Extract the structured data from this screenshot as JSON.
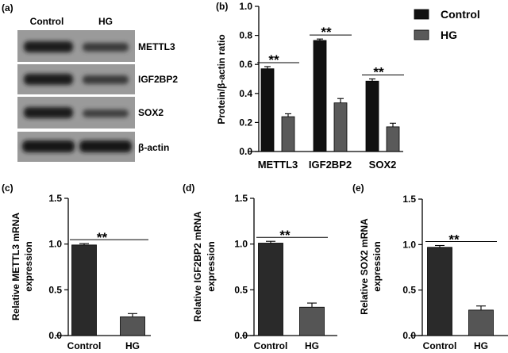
{
  "western_blot": {
    "panel_label": "(a)",
    "lanes": [
      "Control",
      "HG"
    ],
    "bands": [
      "METTL3",
      "IGF2BP2",
      "SOX2",
      "β-actin"
    ]
  },
  "significance": "**",
  "chart_data": [
    {
      "panel": "(b)",
      "type": "bar",
      "categories": [
        "METTL3",
        "IGF2BP2",
        "SOX2"
      ],
      "series": [
        {
          "name": "Control",
          "values": [
            0.57,
            0.765,
            0.485
          ],
          "errors": [
            0.015,
            0.01,
            0.015
          ]
        },
        {
          "name": "HG",
          "values": [
            0.24,
            0.335,
            0.17
          ],
          "errors": [
            0.02,
            0.03,
            0.025
          ]
        }
      ],
      "ylabel": "Protein/β-actin ratio",
      "ylim": [
        0,
        1.0
      ],
      "yticks": [
        "0.0",
        "0.2",
        "0.4",
        "0.6",
        "0.8",
        "1.0"
      ],
      "legend": "top-right",
      "significance": [
        "**",
        "**",
        "**"
      ],
      "colors": {
        "Control": "#111111",
        "HG": "#5a5a5a"
      }
    },
    {
      "panel": "(c)",
      "type": "bar",
      "categories": [
        "Control",
        "HG"
      ],
      "values": [
        0.99,
        0.205
      ],
      "errors": [
        0.015,
        0.035
      ],
      "ylabel": "Relative METTL3 mRNA expression",
      "ylabel_lines": [
        "Relative METTL3 mRNA",
        "expression"
      ],
      "ylim": [
        0,
        1.5
      ],
      "yticks": [
        "0.0",
        "0.5",
        "1.0",
        "1.5"
      ],
      "significance": "**",
      "colors": [
        "#2a2a2a",
        "#555555"
      ]
    },
    {
      "panel": "(d)",
      "type": "bar",
      "categories": [
        "Control",
        "HG"
      ],
      "values": [
        1.01,
        0.31
      ],
      "errors": [
        0.02,
        0.045
      ],
      "ylabel": "Relative IGF2BP2 mRNA expression",
      "ylabel_lines": [
        "Relative IGF2BP2 mRNA",
        "expression"
      ],
      "ylim": [
        0,
        1.5
      ],
      "yticks": [
        "0.0",
        "0.5",
        "1.0",
        "1.5"
      ],
      "significance": "**",
      "colors": [
        "#2a2a2a",
        "#555555"
      ]
    },
    {
      "panel": "(e)",
      "type": "bar",
      "categories": [
        "Control",
        "HG"
      ],
      "values": [
        0.97,
        0.28
      ],
      "errors": [
        0.02,
        0.045
      ],
      "ylabel": "Relative SOX2 mRNA expression",
      "ylabel_lines": [
        "Relative SOX2 mRNA",
        "expression"
      ],
      "ylim": [
        0,
        1.5
      ],
      "yticks": [
        "0.0",
        "0.5",
        "1.0",
        "1.5"
      ],
      "significance": "**",
      "colors": [
        "#2a2a2a",
        "#555555"
      ]
    }
  ]
}
